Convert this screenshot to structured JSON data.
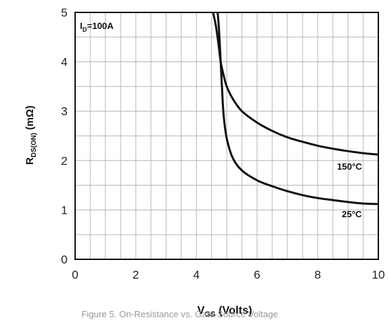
{
  "chart_data": {
    "type": "line",
    "xlabel_main": "V",
    "xlabel_sub": "GS",
    "xlabel_tail": " (Volts)",
    "ylabel_main": "R",
    "ylabel_sub": "DS(ON)",
    "ylabel_tail": " (mΩ)",
    "xlim": [
      0,
      10
    ],
    "ylim": [
      0,
      5
    ],
    "xticks": [
      0,
      2,
      4,
      6,
      8,
      10
    ],
    "yticks": [
      0,
      1,
      2,
      3,
      4,
      5
    ],
    "grid": true,
    "condition_main": "I",
    "condition_sub": "D",
    "condition_tail": "=100A",
    "series": [
      {
        "name": "150°C",
        "x": [
          4.55,
          4.65,
          4.75,
          4.8,
          4.9,
          5.0,
          5.2,
          5.5,
          6.0,
          6.5,
          7.0,
          7.5,
          8.0,
          8.5,
          9.0,
          9.5,
          10.0
        ],
        "y": [
          5.0,
          4.7,
          4.25,
          4.0,
          3.72,
          3.5,
          3.25,
          3.0,
          2.77,
          2.6,
          2.47,
          2.38,
          2.3,
          2.24,
          2.19,
          2.15,
          2.12
        ]
      },
      {
        "name": "25°C",
        "x": [
          4.7,
          4.75,
          4.8,
          4.85,
          4.9,
          5.0,
          5.2,
          5.5,
          6.0,
          6.5,
          7.0,
          7.5,
          8.0,
          8.5,
          9.0,
          9.5,
          10.0
        ],
        "y": [
          5.0,
          4.6,
          4.0,
          3.4,
          2.9,
          2.45,
          2.05,
          1.8,
          1.6,
          1.48,
          1.38,
          1.3,
          1.24,
          1.2,
          1.16,
          1.13,
          1.12
        ]
      }
    ]
  },
  "caption_fragment": "Figure 5. On-Resistance vs. Gate-Source Voltage"
}
